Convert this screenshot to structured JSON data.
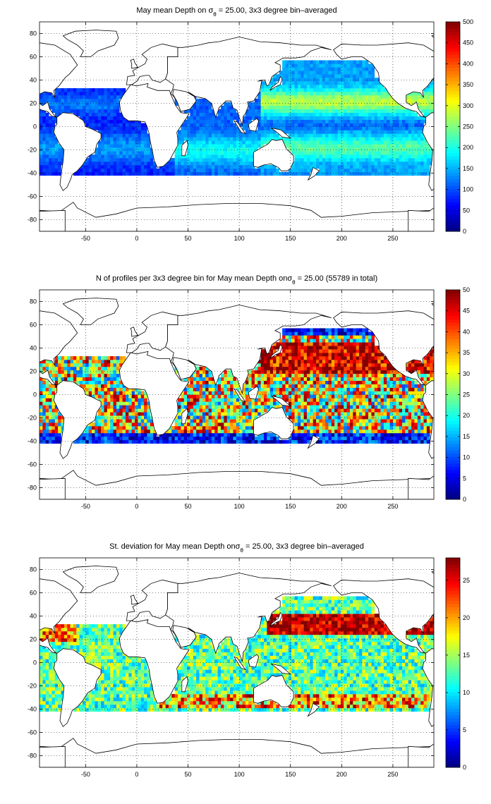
{
  "chart_data": [
    {
      "type": "heatmap",
      "title": {
        "prefix": "May mean Depth on ",
        "symbol": "σ",
        "subscript": "θ",
        "suffix": " = 25.00, 3x3 degree bin–averaged"
      },
      "xlabel": "",
      "ylabel": "",
      "xlim": [
        -95,
        290
      ],
      "ylim": [
        -90,
        90
      ],
      "xticks": [
        -50,
        0,
        50,
        100,
        150,
        200,
        250
      ],
      "yticks": [
        80,
        60,
        40,
        20,
        0,
        -20,
        -40,
        -60,
        -80
      ],
      "grid": true,
      "colormap": "jet",
      "colorbar": {
        "min": 0,
        "max": 500,
        "ticks": [
          0,
          50,
          100,
          150,
          200,
          250,
          300,
          350,
          400,
          450,
          500
        ]
      },
      "bin_size_deg": 3,
      "regions": [
        {
          "ocean": "Atlantic",
          "lon_range": [
            -95,
            -10
          ],
          "lat_range": [
            -42,
            32
          ],
          "typical_value": 110
        },
        {
          "ocean": "Indian",
          "lon_range": [
            35,
            120
          ],
          "lat_range": [
            -42,
            25
          ],
          "typical_value": 150
        },
        {
          "ocean": "Pacific",
          "lon_range": [
            120,
            290
          ],
          "lat_range": [
            -42,
            55
          ],
          "typical_value": 230
        }
      ]
    },
    {
      "type": "heatmap",
      "title": {
        "prefix": "N of profiles per 3x3 degree bin for May mean Depth on",
        "symbol": "σ",
        "subscript": "θ",
        "suffix": " = 25.00 (55789 in total)"
      },
      "total_profiles": 55789,
      "xlabel": "",
      "ylabel": "",
      "xlim": [
        -95,
        290
      ],
      "ylim": [
        -90,
        90
      ],
      "xticks": [
        -50,
        0,
        50,
        100,
        150,
        200,
        250
      ],
      "yticks": [
        80,
        60,
        40,
        20,
        0,
        -20,
        -40,
        -60,
        -80
      ],
      "grid": true,
      "colormap": "jet",
      "colorbar": {
        "min": 0,
        "max": 50,
        "ticks": [
          0,
          5,
          10,
          15,
          20,
          25,
          30,
          35,
          40,
          45,
          50
        ]
      },
      "bin_size_deg": 3,
      "regions": [
        {
          "ocean": "Atlantic",
          "lon_range": [
            -95,
            -10
          ],
          "lat_range": [
            -42,
            32
          ],
          "typical_value": 25
        },
        {
          "ocean": "Indian",
          "lon_range": [
            35,
            120
          ],
          "lat_range": [
            -42,
            25
          ],
          "typical_value": 30
        },
        {
          "ocean": "Pacific",
          "lon_range": [
            120,
            290
          ],
          "lat_range": [
            -42,
            55
          ],
          "typical_value": 35
        }
      ]
    },
    {
      "type": "heatmap",
      "title": {
        "prefix": "St. deviation for May mean Depth on",
        "symbol": "σ",
        "subscript": "θ",
        "suffix": " = 25.00, 3x3 degree bin–averaged"
      },
      "xlabel": "",
      "ylabel": "",
      "xlim": [
        -95,
        290
      ],
      "ylim": [
        -90,
        90
      ],
      "xticks": [
        -50,
        0,
        50,
        100,
        150,
        200,
        250
      ],
      "yticks": [
        80,
        60,
        40,
        20,
        0,
        -20,
        -40,
        -60,
        -80
      ],
      "grid": true,
      "colormap": "jet",
      "colorbar": {
        "min": 0,
        "max": 28,
        "ticks": [
          0,
          5,
          10,
          15,
          20,
          25
        ]
      },
      "bin_size_deg": 3,
      "regions": [
        {
          "ocean": "Atlantic",
          "lon_range": [
            -95,
            -10
          ],
          "lat_range": [
            -42,
            32
          ],
          "typical_value": 10
        },
        {
          "ocean": "Indian",
          "lon_range": [
            35,
            120
          ],
          "lat_range": [
            -42,
            25
          ],
          "typical_value": 14
        },
        {
          "ocean": "Pacific",
          "lon_range": [
            120,
            290
          ],
          "lat_range": [
            -42,
            55
          ],
          "typical_value": 16
        }
      ]
    }
  ]
}
